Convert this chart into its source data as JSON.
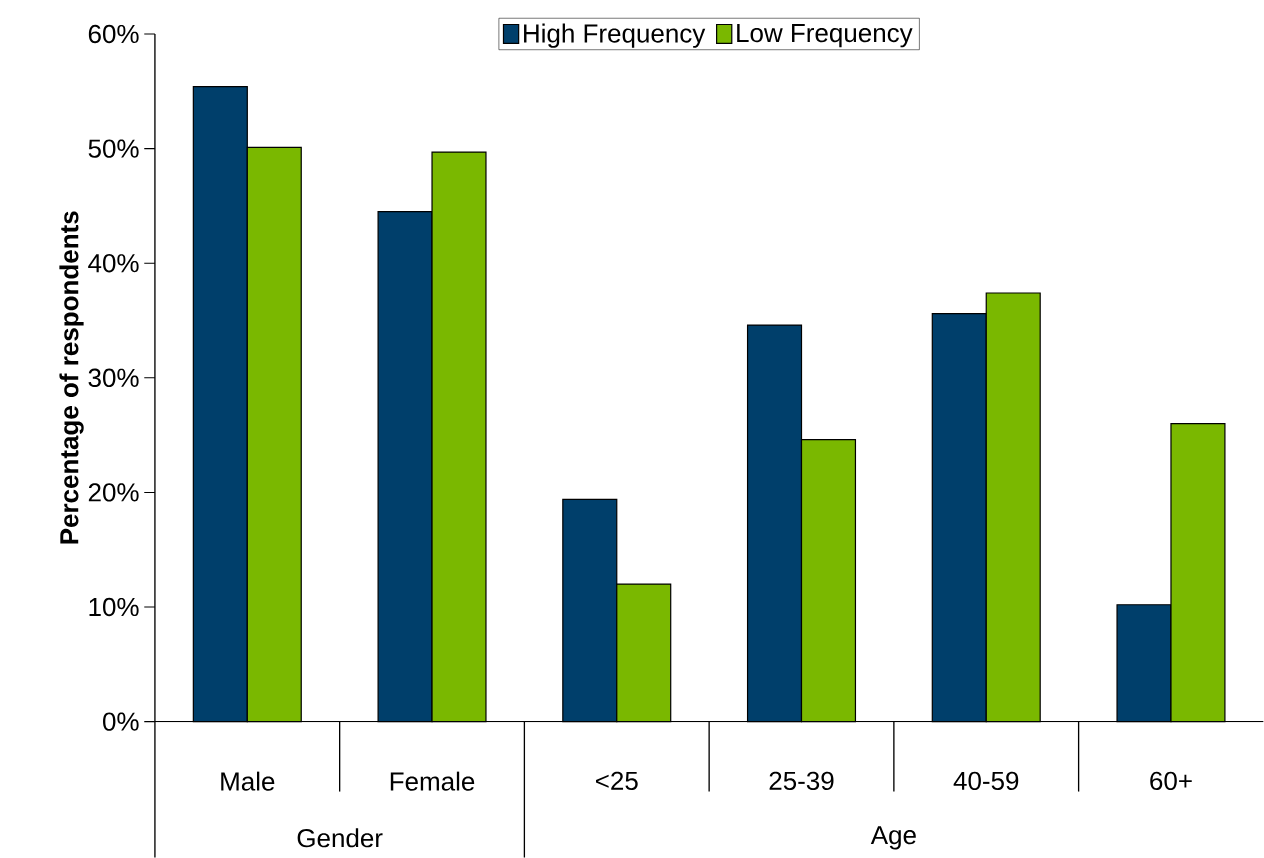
{
  "chart_data": {
    "type": "bar",
    "ylabel": "Percentage of respondents",
    "categories": [
      "Male",
      "Female",
      "<25",
      "25-39",
      "40-59",
      "60+"
    ],
    "series": [
      {
        "name": "High Frequency",
        "color": "#003f6b",
        "values": [
          55.4,
          44.5,
          19.4,
          34.6,
          35.6,
          10.2
        ]
      },
      {
        "name": "Low Frequency",
        "color": "#7ab800",
        "values": [
          50.1,
          49.7,
          12.0,
          24.6,
          37.4,
          26.0
        ]
      }
    ],
    "ylim": [
      0,
      60
    ],
    "yticks": [
      {
        "value": 0,
        "label": "0%"
      },
      {
        "value": 10,
        "label": "10%"
      },
      {
        "value": 20,
        "label": "20%"
      },
      {
        "value": 30,
        "label": "30%"
      },
      {
        "value": 40,
        "label": "40%"
      },
      {
        "value": 50,
        "label": "50%"
      },
      {
        "value": 60,
        "label": "60%"
      }
    ],
    "legend": "top",
    "annotations": [
      "Gender",
      "Age"
    ]
  }
}
